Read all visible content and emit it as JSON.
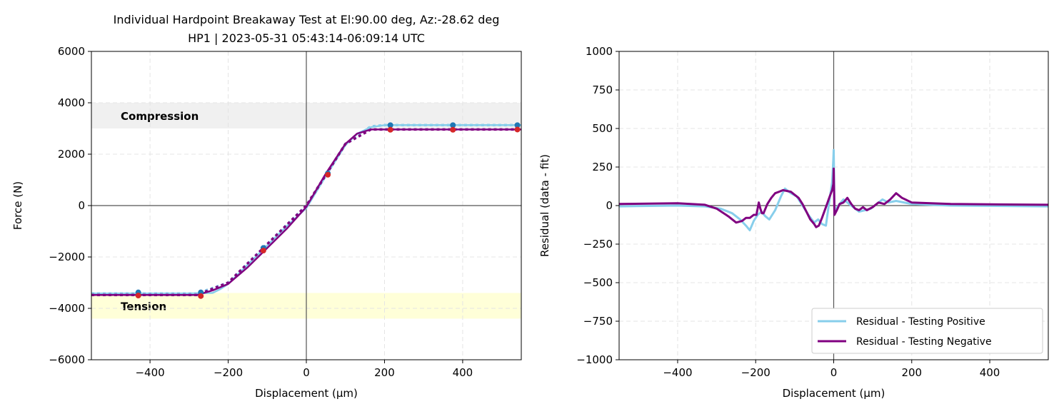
{
  "chart_data": [
    {
      "type": "line",
      "title": "Individual Hardpoint Breakaway Test at El:90.00 deg, Az:-28.62 deg",
      "subtitle": "HP1 | 2023-05-31 05:43:14-06:09:14 UTC",
      "xlabel": "Displacement (µm)",
      "ylabel": "Force (N)",
      "xlim": [
        -550,
        550
      ],
      "ylim": [
        -6000,
        6000
      ],
      "xticks": [
        -400,
        -200,
        0,
        200,
        400
      ],
      "xtick_labels": [
        "−400",
        "−200",
        "0",
        "200",
        "400"
      ],
      "yticks": [
        -6000,
        -4000,
        -2000,
        0,
        2000,
        4000,
        6000
      ],
      "ytick_labels": [
        "−6000",
        "−4000",
        "−2000",
        "0",
        "2000",
        "4000",
        "6000"
      ],
      "grid": true,
      "bands": [
        {
          "label": "Compression",
          "y0": 3000,
          "y1": 4000,
          "color": "#f0f0f0"
        },
        {
          "label": "Tension",
          "y0": -4400,
          "y1": -3400,
          "color": "#ffffd8"
        }
      ],
      "series": [
        {
          "style": "solid",
          "color": "#87ceeb",
          "x": [
            -550,
            -300,
            -240,
            -220,
            -200,
            -150,
            -100,
            -50,
            0,
            50,
            100,
            130,
            165,
            200,
            550
          ],
          "y": [
            -3420,
            -3420,
            -3400,
            -3250,
            -3050,
            -2300,
            -1550,
            -800,
            -100,
            1150,
            2350,
            2800,
            3050,
            3130,
            3130
          ]
        },
        {
          "style": "dotted",
          "color": "#87ceeb",
          "x": [
            -550,
            -280,
            -200,
            -100,
            0,
            100,
            165,
            200,
            550
          ],
          "y": [
            -3420,
            -3420,
            -3000,
            -1500,
            0,
            2400,
            3080,
            3130,
            3130
          ]
        },
        {
          "style": "solid",
          "color": "#800080",
          "x": [
            -550,
            -280,
            -240,
            -200,
            -150,
            -100,
            -50,
            0,
            50,
            100,
            130,
            165,
            550
          ],
          "y": [
            -3480,
            -3480,
            -3300,
            -3050,
            -2400,
            -1650,
            -900,
            -50,
            1250,
            2400,
            2800,
            2960,
            2960
          ]
        },
        {
          "style": "dotted",
          "color": "#800080",
          "x": [
            -550,
            -280,
            -200,
            -100,
            0,
            100,
            165,
            550
          ],
          "y": [
            -3480,
            -3480,
            -3000,
            -1500,
            0,
            2400,
            2960,
            2960
          ]
        },
        {
          "style": "points",
          "color": "#1f77b4",
          "x": [
            -430,
            -270,
            -110,
            55,
            215,
            375,
            540
          ],
          "y": [
            -3380,
            -3380,
            -1650,
            1250,
            3130,
            3130,
            3130
          ]
        },
        {
          "style": "points",
          "color": "#d62728",
          "x": [
            -430,
            -270,
            -110,
            55,
            215,
            375,
            540
          ],
          "y": [
            -3500,
            -3520,
            -1750,
            1200,
            2950,
            2950,
            2960
          ]
        }
      ]
    },
    {
      "type": "line",
      "xlabel": "Displacement (µm)",
      "ylabel": "Residual (data - fit)",
      "xlim": [
        -550,
        550
      ],
      "ylim": [
        -1000,
        1000
      ],
      "xticks": [
        -400,
        -200,
        0,
        200,
        400
      ],
      "xtick_labels": [
        "−400",
        "−200",
        "0",
        "200",
        "400"
      ],
      "yticks": [
        -1000,
        -750,
        -500,
        -250,
        0,
        250,
        500,
        750,
        1000
      ],
      "ytick_labels": [
        "−1000",
        "−750",
        "−500",
        "−250",
        "0",
        "250",
        "500",
        "750",
        "1000"
      ],
      "grid": true,
      "legend": "lower-right",
      "series": [
        {
          "name": "Residual - Testing Positive",
          "color": "#87ceeb",
          "x": [
            -550,
            -400,
            -330,
            -290,
            -260,
            -240,
            -225,
            -215,
            -205,
            -195,
            -185,
            -175,
            -165,
            -150,
            -135,
            -125,
            -110,
            -95,
            -80,
            -65,
            -50,
            -40,
            -30,
            -20,
            -10,
            -4,
            -1,
            0,
            2,
            6,
            15,
            25,
            35,
            50,
            65,
            80,
            95,
            110,
            125,
            140,
            160,
            200,
            300,
            550
          ],
          "y": [
            -5,
            0,
            -5,
            -20,
            -50,
            -90,
            -130,
            -160,
            -100,
            -60,
            -40,
            -70,
            -90,
            -30,
            60,
            110,
            80,
            60,
            0,
            -60,
            -110,
            -90,
            -120,
            -130,
            50,
            150,
            300,
            360,
            -40,
            -20,
            10,
            40,
            20,
            -10,
            -40,
            -30,
            -20,
            10,
            40,
            20,
            30,
            10,
            0,
            -5
          ]
        },
        {
          "name": "Residual - Testing Negative",
          "color": "#800080",
          "x": [
            -550,
            -400,
            -330,
            -300,
            -270,
            -250,
            -235,
            -225,
            -215,
            -205,
            -198,
            -192,
            -188,
            -184,
            -180,
            -170,
            -160,
            -150,
            -140,
            -130,
            -120,
            -110,
            -100,
            -90,
            -80,
            -70,
            -60,
            -50,
            -45,
            -38,
            -30,
            -20,
            -10,
            -4,
            -1,
            0,
            2,
            8,
            15,
            25,
            35,
            45,
            55,
            65,
            75,
            85,
            100,
            115,
            130,
            145,
            160,
            175,
            200,
            300,
            550
          ],
          "y": [
            10,
            15,
            5,
            -20,
            -70,
            -110,
            -100,
            -80,
            -80,
            -60,
            -60,
            20,
            -20,
            -50,
            -50,
            10,
            50,
            80,
            90,
            100,
            95,
            90,
            70,
            50,
            10,
            -40,
            -90,
            -120,
            -140,
            -130,
            -80,
            -10,
            60,
            100,
            140,
            240,
            -60,
            -30,
            10,
            20,
            50,
            10,
            -20,
            -30,
            -10,
            -30,
            -10,
            20,
            10,
            40,
            80,
            50,
            20,
            10,
            5
          ]
        }
      ]
    }
  ]
}
